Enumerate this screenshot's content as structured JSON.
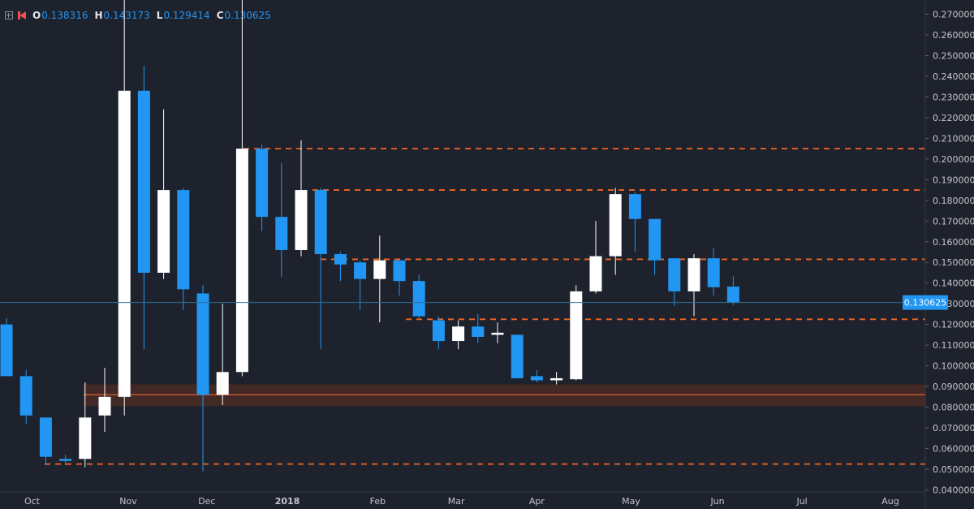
{
  "ohlc": {
    "o_label": "O",
    "o_value": "0.138316",
    "h_label": "H",
    "h_value": "0.143173",
    "l_label": "L",
    "l_value": "0.129414",
    "c_label": "C",
    "c_value": "0.130625"
  },
  "colors": {
    "background": "#1e222d",
    "up": "#ffffff",
    "down": "#2196f3",
    "support_line": "#f26522",
    "zone_fill": "#4a2a25",
    "zone_line": "#ff6d3a",
    "price_line": "#2f6f9b",
    "price_label_bg": "#2196f3",
    "axis_text": "#c3c6cc"
  },
  "chart_data": {
    "type": "candlestick",
    "interval": "weekly",
    "y_axis": {
      "min": 0.04,
      "max": 0.27,
      "ticks": [
        "0.040000",
        "0.050000",
        "0.060000",
        "0.070000",
        "0.080000",
        "0.090000",
        "0.100000",
        "0.110000",
        "0.120000",
        "0.130000",
        "0.140000",
        "0.150000",
        "0.160000",
        "0.170000",
        "0.180000",
        "0.190000",
        "0.200000",
        "0.210000",
        "0.220000",
        "0.230000",
        "0.240000",
        "0.250000",
        "0.260000",
        "0.270000"
      ]
    },
    "x_axis": {
      "labels": [
        "Oct",
        "Nov",
        "Dec",
        "2018",
        "Feb",
        "Mar",
        "Apr",
        "May",
        "Jun",
        "Jul",
        "Aug"
      ],
      "label_weeks": [
        1.3,
        6.2,
        10.2,
        14.3,
        18.9,
        22.9,
        27,
        31.8,
        36.2,
        40.5,
        45
      ]
    },
    "current_price": "0.130625",
    "candles": [
      {
        "o": 0.12,
        "h": 0.123,
        "l": 0.095,
        "c": 0.095
      },
      {
        "o": 0.095,
        "h": 0.098,
        "l": 0.072,
        "c": 0.076
      },
      {
        "o": 0.075,
        "h": 0.075,
        "l": 0.052,
        "c": 0.056
      },
      {
        "o": 0.055,
        "h": 0.057,
        "l": 0.052,
        "c": 0.054
      },
      {
        "o": 0.055,
        "h": 0.092,
        "l": 0.051,
        "c": 0.075
      },
      {
        "o": 0.076,
        "h": 0.099,
        "l": 0.068,
        "c": 0.085
      },
      {
        "o": 0.085,
        "h": 0.28,
        "l": 0.076,
        "c": 0.233
      },
      {
        "o": 0.233,
        "h": 0.245,
        "l": 0.108,
        "c": 0.145
      },
      {
        "o": 0.145,
        "h": 0.224,
        "l": 0.142,
        "c": 0.185
      },
      {
        "o": 0.185,
        "h": 0.186,
        "l": 0.127,
        "c": 0.137
      },
      {
        "o": 0.135,
        "h": 0.139,
        "l": 0.049,
        "c": 0.086
      },
      {
        "o": 0.086,
        "h": 0.13,
        "l": 0.081,
        "c": 0.097
      },
      {
        "o": 0.097,
        "h": 0.28,
        "l": 0.095,
        "c": 0.205
      },
      {
        "o": 0.205,
        "h": 0.207,
        "l": 0.165,
        "c": 0.172
      },
      {
        "o": 0.172,
        "h": 0.198,
        "l": 0.143,
        "c": 0.156
      },
      {
        "o": 0.156,
        "h": 0.209,
        "l": 0.153,
        "c": 0.185
      },
      {
        "o": 0.185,
        "h": 0.186,
        "l": 0.108,
        "c": 0.154
      },
      {
        "o": 0.154,
        "h": 0.155,
        "l": 0.141,
        "c": 0.149
      },
      {
        "o": 0.15,
        "h": 0.151,
        "l": 0.127,
        "c": 0.142
      },
      {
        "o": 0.142,
        "h": 0.163,
        "l": 0.121,
        "c": 0.151
      },
      {
        "o": 0.151,
        "h": 0.151,
        "l": 0.134,
        "c": 0.141
      },
      {
        "o": 0.141,
        "h": 0.144,
        "l": 0.123,
        "c": 0.124
      },
      {
        "o": 0.122,
        "h": 0.124,
        "l": 0.108,
        "c": 0.112
      },
      {
        "o": 0.112,
        "h": 0.122,
        "l": 0.108,
        "c": 0.119
      },
      {
        "o": 0.119,
        "h": 0.125,
        "l": 0.111,
        "c": 0.114
      },
      {
        "o": 0.115,
        "h": 0.121,
        "l": 0.111,
        "c": 0.116
      },
      {
        "o": 0.115,
        "h": 0.115,
        "l": 0.094,
        "c": 0.094
      },
      {
        "o": 0.095,
        "h": 0.098,
        "l": 0.092,
        "c": 0.093
      },
      {
        "o": 0.093,
        "h": 0.097,
        "l": 0.091,
        "c": 0.094
      },
      {
        "o": 0.0935,
        "h": 0.139,
        "l": 0.093,
        "c": 0.136
      },
      {
        "o": 0.136,
        "h": 0.17,
        "l": 0.135,
        "c": 0.153
      },
      {
        "o": 0.153,
        "h": 0.186,
        "l": 0.144,
        "c": 0.183
      },
      {
        "o": 0.183,
        "h": 0.184,
        "l": 0.155,
        "c": 0.171
      },
      {
        "o": 0.171,
        "h": 0.171,
        "l": 0.144,
        "c": 0.151
      },
      {
        "o": 0.152,
        "h": 0.152,
        "l": 0.129,
        "c": 0.136
      },
      {
        "o": 0.136,
        "h": 0.154,
        "l": 0.124,
        "c": 0.152
      },
      {
        "o": 0.152,
        "h": 0.157,
        "l": 0.134,
        "c": 0.138
      },
      {
        "o": 0.1383,
        "h": 0.1432,
        "l": 0.1294,
        "c": 0.1306
      }
    ],
    "horizontal_levels": [
      0.205,
      0.185,
      0.1515,
      0.1225,
      0.0525
    ],
    "zone": {
      "low": 0.0805,
      "high": 0.091,
      "mid": 0.086
    }
  }
}
